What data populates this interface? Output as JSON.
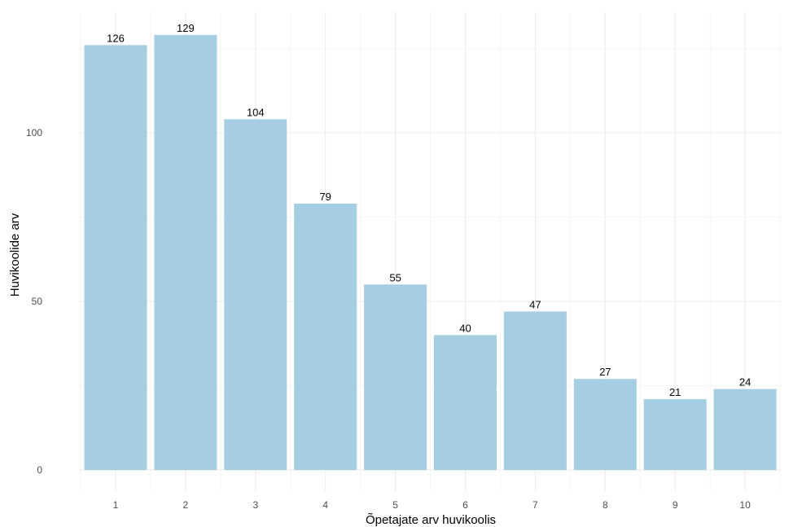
{
  "chart_data": {
    "type": "bar",
    "categories": [
      "1",
      "2",
      "3",
      "4",
      "5",
      "6",
      "7",
      "8",
      "9",
      "10"
    ],
    "values": [
      126,
      129,
      104,
      79,
      55,
      40,
      47,
      27,
      21,
      24
    ],
    "data_labels": [
      "126",
      "129",
      "104",
      "79",
      "55",
      "40",
      "47",
      "27",
      "21",
      "24"
    ],
    "title": "",
    "xlabel": "Õpetajate arv huvikoolis",
    "ylabel": "Huvikoolide arv",
    "ylim": [
      0,
      135
    ],
    "yticks": [
      0,
      50,
      100
    ],
    "ytick_labels": [
      "0",
      "50",
      "100"
    ],
    "grid": true,
    "legend": "none",
    "bar_color": "#a6cee3",
    "grid_color": "#ebebeb"
  }
}
